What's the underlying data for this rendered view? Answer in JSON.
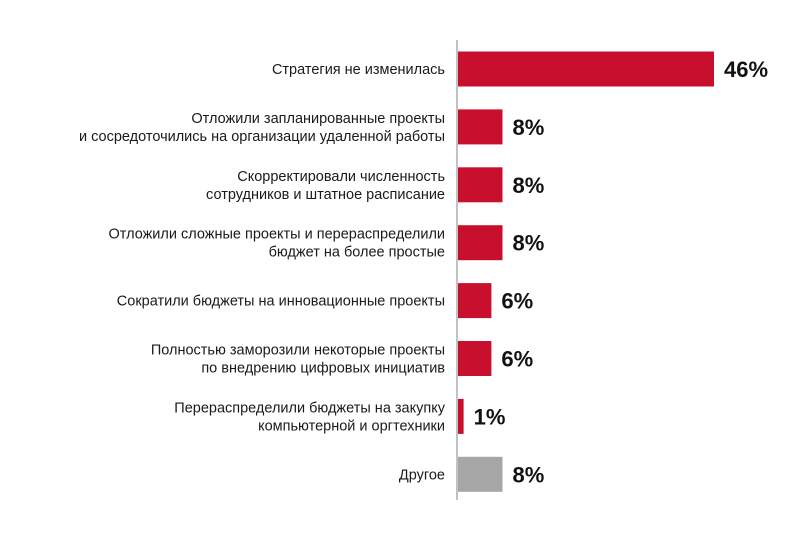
{
  "chart_data": {
    "type": "bar",
    "orientation": "horizontal",
    "categories": [
      [
        "Стратегия  не изменилась"
      ],
      [
        "Отложили  запланированные  проекты",
        "и сосредоточились на организации  удаленной работы"
      ],
      [
        "Скорректировали  численность",
        "сотрудников и штатное  расписание"
      ],
      [
        "Отложили  сложные проекты  и перераспределили",
        "бюджет на более  простые"
      ],
      [
        "Сократили  бюджеты на инновационные  проекты"
      ],
      [
        "Полностью  заморозили некоторые проекты",
        "по внедрению  цифровых инициатив"
      ],
      [
        "Перераспределили  бюджеты на закупку",
        "компьютерной  и оргтехники"
      ],
      [
        "Другое"
      ]
    ],
    "values": [
      46,
      8,
      8,
      8,
      6,
      6,
      1,
      8
    ],
    "value_labels": [
      "46%",
      "8%",
      "8%",
      "8%",
      "6%",
      "6%",
      "1%",
      "8%"
    ],
    "bar_colors": [
      "#c8102e",
      "#c8102e",
      "#c8102e",
      "#c8102e",
      "#c8102e",
      "#c8102e",
      "#c8102e",
      "#a6a6a6"
    ],
    "xlim": [
      0,
      46
    ],
    "grid": false,
    "legend": "none"
  }
}
